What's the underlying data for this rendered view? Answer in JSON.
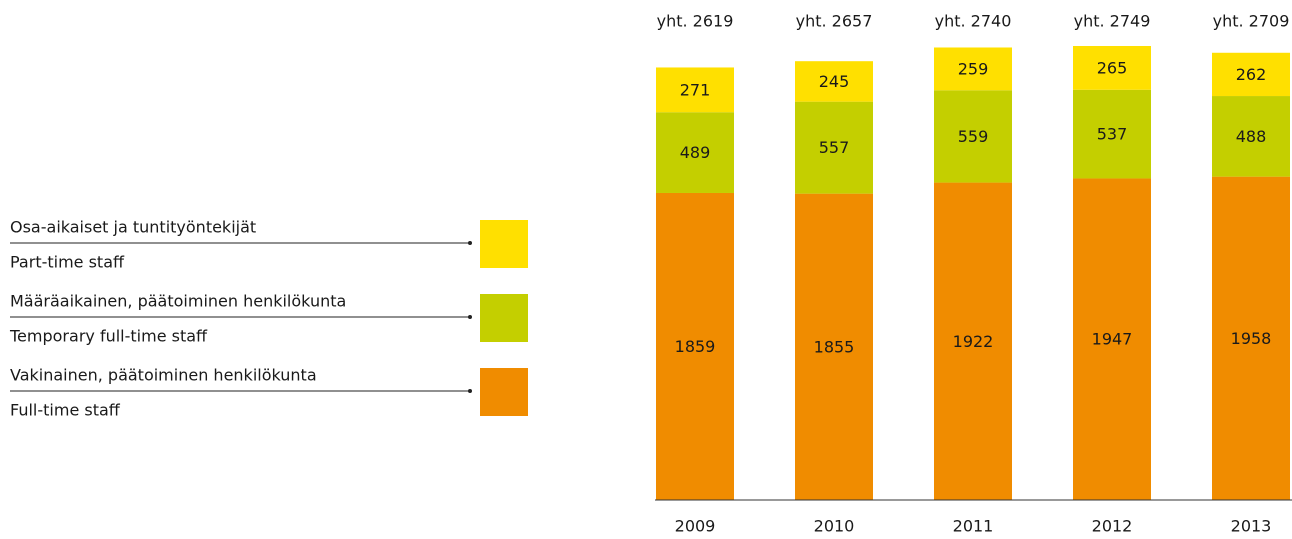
{
  "chart_data": {
    "type": "stacked_bar",
    "categories": [
      "2009",
      "2010",
      "2011",
      "2012",
      "2013"
    ],
    "series": [
      {
        "name": "Vakinainen, päätoiminen henkilökunta",
        "name_en": "Full-time staff",
        "color": "#f08c00",
        "values": [
          1859,
          1855,
          1922,
          1947,
          1958
        ]
      },
      {
        "name": "Määräaikainen, päätoiminen henkilökunta",
        "name_en": "Temporary full-time staff",
        "color": "#c4cf00",
        "values": [
          489,
          557,
          559,
          537,
          488
        ]
      },
      {
        "name": "Osa-aikaiset ja tuntityöntekijät",
        "name_en": "Part-time staff",
        "color": "#ffe000",
        "values": [
          271,
          245,
          259,
          265,
          262
        ]
      }
    ],
    "totals": [
      2619,
      2657,
      2740,
      2749,
      2709
    ],
    "total_labels": [
      "yht. 2619",
      "yht. 2657",
      "yht. 2740",
      "yht. 2749",
      "yht. 2709"
    ]
  }
}
